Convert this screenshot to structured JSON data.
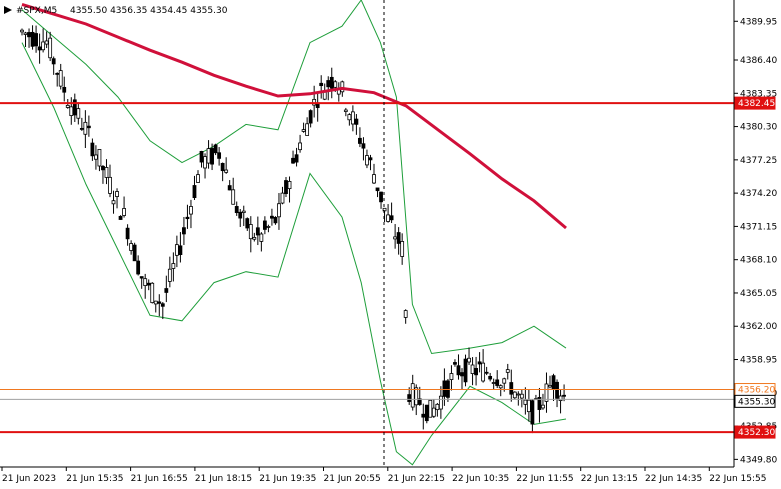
{
  "header": {
    "symbol": "#SPX,M5",
    "ohlc": "4355.50 4356.35 4354.45 4355.30"
  },
  "colors": {
    "background": "#ffffff",
    "candle": "#000000",
    "bands": "#1e9e3a",
    "ma": "#d0103a",
    "level_red": "#e01010",
    "level_orange": "#f07820",
    "price_grey": "#a0a0a0"
  },
  "chart_data": {
    "type": "candlestick",
    "title": "",
    "ylim": [
      4349.1,
      4391.9
    ],
    "y_ticks": [
      "4389.95",
      "4386.40",
      "4383.35",
      "4380.30",
      "4377.25",
      "4374.20",
      "4371.15",
      "4368.10",
      "4365.05",
      "4362.00",
      "4358.95",
      "4355.90",
      "4352.85",
      "4349.80"
    ],
    "x_ticks": [
      "21 Jun 2023",
      "21 Jun 15:35",
      "21 Jun 16:55",
      "21 Jun 18:15",
      "21 Jun 19:35",
      "21 Jun 20:55",
      "21 Jun 22:15",
      "22 Jun 10:35",
      "22 Jun 11:55",
      "22 Jun 13:15",
      "22 Jun 14:35",
      "22 Jun 15:55"
    ],
    "session_break_index": 5.5,
    "levels": [
      {
        "name": "resistance",
        "value": 4382.45,
        "label": "4382.45",
        "color": "#e01010"
      },
      {
        "name": "support",
        "value": 4352.3,
        "label": "4352.30",
        "color": "#e01010"
      },
      {
        "name": "open",
        "value": 4356.2,
        "label": "4356.20",
        "color": "#f07820"
      },
      {
        "name": "last",
        "value": 4355.3,
        "label": "4355.30",
        "color": "#a0a0a0"
      }
    ],
    "ma_series": {
      "name": "",
      "points": [
        [
          0,
          4391.5
        ],
        [
          0.5,
          4390.6
        ],
        [
          1,
          4389.7
        ],
        [
          1.5,
          4388.5
        ],
        [
          2,
          4387.3
        ],
        [
          2.5,
          4386.2
        ],
        [
          3,
          4385.0
        ],
        [
          3.5,
          4384.0
        ],
        [
          4,
          4383.1
        ],
        [
          4.5,
          4383.3
        ],
        [
          5,
          4383.8
        ],
        [
          5.5,
          4383.4
        ],
        [
          6,
          4382.2
        ],
        [
          6.5,
          4380.0
        ],
        [
          7,
          4377.8
        ],
        [
          7.5,
          4375.5
        ],
        [
          8,
          4373.5
        ],
        [
          8.5,
          4371.0
        ]
      ]
    },
    "band_upper": {
      "name": "",
      "points": [
        [
          0,
          4391.0
        ],
        [
          0.5,
          4388.5
        ],
        [
          1,
          4386.0
        ],
        [
          1.5,
          4383.0
        ],
        [
          2,
          4379.0
        ],
        [
          2.5,
          4377.0
        ],
        [
          3,
          4378.5
        ],
        [
          3.5,
          4380.5
        ],
        [
          4,
          4380.0
        ],
        [
          4.5,
          4388.0
        ],
        [
          5,
          4389.5
        ],
        [
          5.3,
          4391.9
        ],
        [
          5.6,
          4388.0
        ],
        [
          5.85,
          4383.0
        ],
        [
          6.1,
          4364.0
        ],
        [
          6.4,
          4359.5
        ],
        [
          7,
          4360.0
        ],
        [
          7.5,
          4360.5
        ],
        [
          8,
          4362.0
        ],
        [
          8.5,
          4360.0
        ]
      ]
    },
    "band_lower": {
      "name": "",
      "points": [
        [
          0,
          4388.0
        ],
        [
          0.5,
          4382.0
        ],
        [
          1,
          4375.0
        ],
        [
          1.5,
          4369.0
        ],
        [
          2,
          4363.0
        ],
        [
          2.5,
          4362.5
        ],
        [
          3,
          4366.0
        ],
        [
          3.5,
          4367.0
        ],
        [
          4,
          4366.5
        ],
        [
          4.5,
          4376.0
        ],
        [
          5,
          4372.0
        ],
        [
          5.3,
          4366.0
        ],
        [
          5.6,
          4357.0
        ],
        [
          5.85,
          4350.5
        ],
        [
          6.1,
          4349.3
        ],
        [
          6.4,
          4352.0
        ],
        [
          7,
          4356.5
        ],
        [
          7.5,
          4355.0
        ],
        [
          8,
          4353.0
        ],
        [
          8.5,
          4353.5
        ]
      ]
    }
  }
}
